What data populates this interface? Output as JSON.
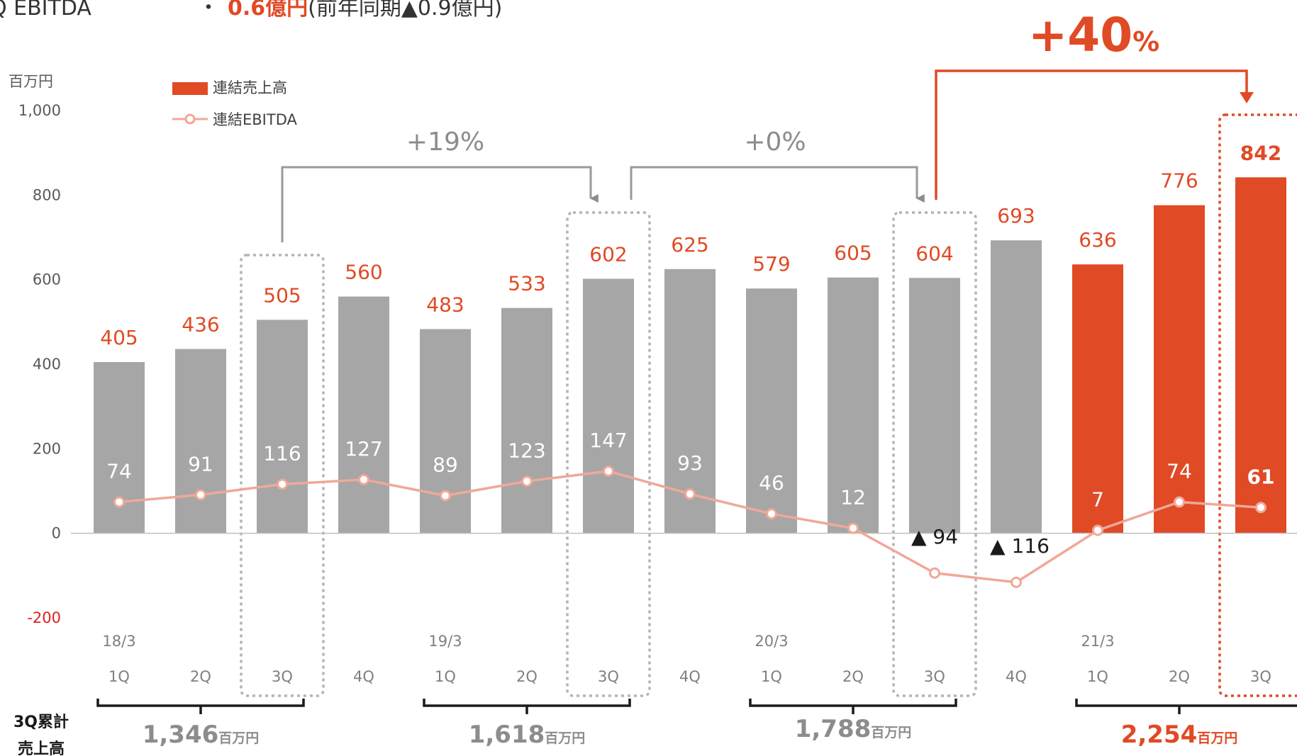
{
  "header": {
    "label": "Q EBITDA",
    "bullet": "・",
    "value": "0.6億円",
    "note": "(前年同期▲0.9億円)"
  },
  "colors": {
    "past_bar": "#a6a6a6",
    "current_bar": "#e04a25",
    "ebitda_line": "#f0a898",
    "accent": "#e04a25"
  },
  "chart_data": {
    "type": "bar",
    "unit": "百万円",
    "ylim": [
      -200,
      1000
    ],
    "yticks": [
      {
        "value": 1000,
        "label": "1,000"
      },
      {
        "value": 800,
        "label": "800"
      },
      {
        "value": 600,
        "label": "600"
      },
      {
        "value": 400,
        "label": "400"
      },
      {
        "value": 200,
        "label": "200"
      },
      {
        "value": 0,
        "label": "0"
      },
      {
        "value": -200,
        "label": "-200"
      }
    ],
    "grid": false,
    "legend": {
      "position": "top-left"
    },
    "categories": [
      "1Q",
      "2Q",
      "3Q",
      "4Q",
      "1Q",
      "2Q",
      "3Q",
      "4Q",
      "1Q",
      "2Q",
      "3Q",
      "4Q",
      "1Q",
      "2Q",
      "3Q"
    ],
    "fiscal_years": [
      {
        "label": "18/3",
        "start_index": 0
      },
      {
        "label": "19/3",
        "start_index": 4
      },
      {
        "label": "20/3",
        "start_index": 8
      },
      {
        "label": "21/3",
        "start_index": 12
      }
    ],
    "series": [
      {
        "name": "連結売上高",
        "kind": "bar",
        "values": [
          405,
          436,
          505,
          560,
          483,
          533,
          602,
          625,
          579,
          605,
          604,
          693,
          636,
          776,
          842
        ],
        "labels": [
          "405",
          "436",
          "505",
          "560",
          "483",
          "533",
          "602",
          "625",
          "579",
          "605",
          "604",
          "693",
          "636",
          "776",
          "842"
        ]
      },
      {
        "name": "連結EBITDA",
        "kind": "line",
        "values": [
          74,
          91,
          116,
          127,
          89,
          123,
          147,
          93,
          46,
          12,
          -94,
          -116,
          7,
          74,
          61
        ],
        "labels": [
          "74",
          "91",
          "116",
          "127",
          "89",
          "123",
          "147",
          "93",
          "46",
          "12",
          "▲ 94",
          "▲ 116",
          "7",
          "74",
          "61"
        ]
      }
    ],
    "highlighted_quarters": [
      2,
      6,
      10,
      14
    ],
    "growth_annotations": [
      {
        "from_index": 2,
        "to_index": 6,
        "label": "+19%"
      },
      {
        "from_index": 6,
        "to_index": 10,
        "label": "+0%"
      },
      {
        "from_index": 10,
        "to_index": 14,
        "label": "+40",
        "suffix": "%"
      }
    ],
    "cumulative": {
      "title_lines": [
        "3Q累計",
        "売上高"
      ],
      "items": [
        {
          "start_index": 0,
          "end_index": 2,
          "value": "1,346",
          "unit": "百万円"
        },
        {
          "start_index": 4,
          "end_index": 6,
          "value": "1,618",
          "unit": "百万円"
        },
        {
          "start_index": 8,
          "end_index": 10,
          "value": "1,788",
          "unit": "百万円"
        },
        {
          "start_index": 12,
          "end_index": 14,
          "value": "2,254",
          "unit": "百万円"
        }
      ]
    }
  }
}
